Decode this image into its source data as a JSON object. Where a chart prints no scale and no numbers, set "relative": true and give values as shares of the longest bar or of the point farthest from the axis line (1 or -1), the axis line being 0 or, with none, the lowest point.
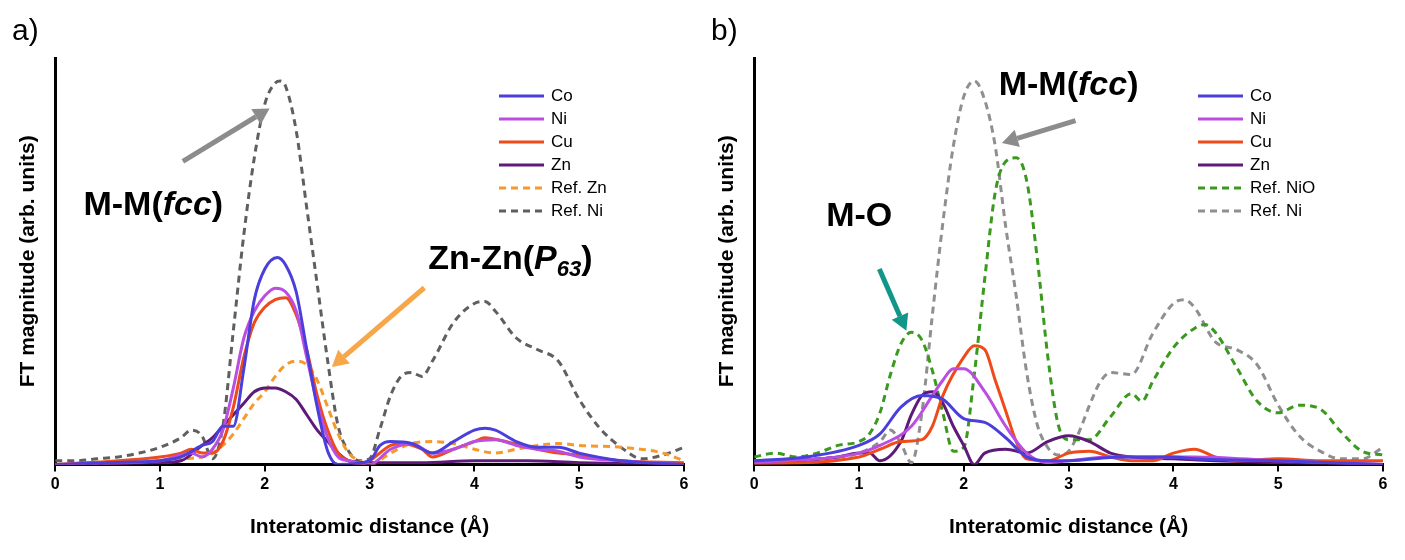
{
  "chart_data": [
    {
      "type": "line",
      "title": "a)",
      "xlabel": "Interatomic distance (Å)",
      "ylabel": "FT magnitude (arb. units)",
      "relative": true,
      "xlim": [
        0,
        6
      ],
      "xticks": [
        0,
        1,
        2,
        3,
        4,
        5,
        6
      ],
      "grid": false,
      "legend": "top right",
      "marker": "none",
      "annotations": [
        "M-M(fcc)",
        "Zn-Zn(P$_{63}$)"
      ],
      "series": [
        {
          "name": "Co",
          "color": "#4b3fdc",
          "line_style": "solid",
          "x": [
            0,
            0.5,
            1.0,
            1.2,
            1.4,
            1.5,
            1.6,
            1.7,
            1.8,
            1.9,
            2.0,
            2.12,
            2.2,
            2.3,
            2.4,
            2.5,
            2.6,
            2.7,
            3.0,
            3.1,
            3.2,
            3.4,
            3.6,
            3.8,
            4.0,
            4.1,
            4.2,
            4.4,
            4.6,
            4.8,
            5.0,
            5.4,
            6.0
          ],
          "values": [
            0,
            0.005,
            0.01,
            0.02,
            0.05,
            0.06,
            0.1,
            0.1,
            0.25,
            0.43,
            0.51,
            0.54,
            0.52,
            0.45,
            0.3,
            0.15,
            0.035,
            0,
            0.01,
            0.05,
            0.06,
            0.055,
            0.03,
            0.06,
            0.09,
            0.095,
            0.09,
            0.06,
            0.045,
            0.045,
            0.03,
            0.01,
            0
          ]
        },
        {
          "name": "Ni",
          "color": "#b94ee0",
          "line_style": "solid",
          "x": [
            0,
            1.0,
            1.3,
            1.4,
            1.5,
            1.6,
            1.7,
            1.8,
            1.9,
            2.0,
            2.1,
            2.2,
            2.3,
            2.4,
            2.5,
            2.6,
            2.7,
            2.8,
            3.0,
            3.2,
            3.4,
            3.6,
            3.8,
            4.0,
            4.2,
            4.4,
            4.6,
            4.8,
            5.0,
            5.4,
            6.0
          ],
          "values": [
            0,
            0.01,
            0.03,
            0.02,
            0.04,
            0.09,
            0.2,
            0.33,
            0.4,
            0.44,
            0.46,
            0.45,
            0.4,
            0.28,
            0.16,
            0.07,
            0.02,
            0.01,
            0,
            0.04,
            0.055,
            0.03,
            0.04,
            0.06,
            0.065,
            0.05,
            0.04,
            0.035,
            0.02,
            0.01,
            0
          ]
        },
        {
          "name": "Cu",
          "color": "#ee4a1a",
          "line_style": "solid",
          "x": [
            0,
            1.0,
            1.2,
            1.3,
            1.4,
            1.5,
            1.6,
            1.7,
            1.8,
            1.9,
            2.0,
            2.1,
            2.2,
            2.3,
            2.4,
            2.5,
            2.6,
            2.7,
            2.8,
            2.9,
            3.0,
            3.2,
            3.3,
            3.5,
            3.6,
            3.8,
            4.0,
            4.1,
            4.3,
            4.6,
            4.8,
            5.0,
            5.4,
            6.0
          ],
          "values": [
            0,
            0.02,
            0.03,
            0.04,
            0.03,
            0.03,
            0.06,
            0.15,
            0.28,
            0.37,
            0.41,
            0.43,
            0.435,
            0.39,
            0.3,
            0.18,
            0.09,
            0.03,
            0.01,
            0,
            0.01,
            0.05,
            0.055,
            0.04,
            0.02,
            0.04,
            0.06,
            0.07,
            0.06,
            0.04,
            0.03,
            0.025,
            0.01,
            0.005
          ]
        },
        {
          "name": "Zn",
          "color": "#5e1a78",
          "line_style": "solid",
          "x": [
            0,
            1.0,
            1.2,
            1.4,
            1.5,
            1.6,
            1.7,
            1.8,
            1.9,
            2.0,
            2.1,
            2.2,
            2.3,
            2.4,
            2.5,
            2.6,
            2.7,
            2.8,
            3.0,
            3.5,
            4.0,
            4.5,
            5.0,
            6.0
          ],
          "values": [
            0,
            0.005,
            0.01,
            0.05,
            0.07,
            0.1,
            0.13,
            0.16,
            0.19,
            0.2,
            0.2,
            0.19,
            0.17,
            0.13,
            0.09,
            0.06,
            0.03,
            0.01,
            0.005,
            0.005,
            0.01,
            0.01,
            0.005,
            0
          ]
        },
        {
          "name": "Ref. Zn",
          "color": "#f59a2a",
          "line_style": "dashed",
          "x": [
            0,
            1.0,
            1.2,
            1.4,
            1.5,
            1.6,
            1.7,
            1.8,
            1.9,
            2.0,
            2.1,
            2.2,
            2.3,
            2.4,
            2.5,
            2.6,
            2.7,
            2.8,
            2.9,
            3.0,
            3.2,
            3.4,
            3.6,
            3.8,
            4.0,
            4.2,
            4.4,
            4.6,
            4.8,
            5.0,
            5.4,
            5.8,
            6.0
          ],
          "values": [
            0,
            0.01,
            0.015,
            0.02,
            0.03,
            0.05,
            0.08,
            0.12,
            0.16,
            0.19,
            0.23,
            0.26,
            0.27,
            0.26,
            0.22,
            0.15,
            0.08,
            0.03,
            0.01,
            0,
            0.03,
            0.055,
            0.06,
            0.055,
            0.04,
            0.03,
            0.04,
            0.05,
            0.055,
            0.05,
            0.045,
            0.03,
            0.01
          ]
        },
        {
          "name": "Ref. Ni",
          "color": "#5f5f5f",
          "line_style": "dashed",
          "x": [
            0,
            0.2,
            0.4,
            0.6,
            0.8,
            1.0,
            1.2,
            1.3,
            1.4,
            1.5,
            1.6,
            1.7,
            1.8,
            1.9,
            2.0,
            2.1,
            2.15,
            2.2,
            2.3,
            2.4,
            2.5,
            2.6,
            2.7,
            2.8,
            2.9,
            3.0,
            3.1,
            3.2,
            3.3,
            3.4,
            3.5,
            3.6,
            3.8,
            4.0,
            4.1,
            4.2,
            4.4,
            4.6,
            4.8,
            5.0,
            5.2,
            5.4,
            5.6,
            5.8,
            6.0
          ],
          "values": [
            0.01,
            0.01,
            0.015,
            0.02,
            0.03,
            0.045,
            0.07,
            0.09,
            0.075,
            0.015,
            0.1,
            0.35,
            0.6,
            0.8,
            0.94,
            0.995,
            1,
            0.985,
            0.87,
            0.67,
            0.47,
            0.27,
            0.1,
            0.035,
            0.01,
            0.015,
            0.094,
            0.18,
            0.23,
            0.24,
            0.23,
            0.27,
            0.37,
            0.42,
            0.425,
            0.4,
            0.33,
            0.3,
            0.27,
            0.17,
            0.094,
            0.045,
            0.015,
            0.025,
            0.045
          ]
        }
      ]
    },
    {
      "type": "line",
      "title": "b)",
      "xlabel": "Interatomic distance (Å)",
      "ylabel": "FT magnitude (arb. units)",
      "relative": true,
      "xlim": [
        0,
        6
      ],
      "xticks": [
        0,
        1,
        2,
        3,
        4,
        5,
        6
      ],
      "grid": false,
      "legend": "top right",
      "marker": "none",
      "annotations": [
        "M-O",
        "M-M(fcc)"
      ],
      "series": [
        {
          "name": "Co",
          "color": "#4b3fdc",
          "line_style": "solid",
          "x": [
            0,
            0.5,
            1.0,
            1.2,
            1.4,
            1.6,
            1.8,
            2.0,
            2.2,
            2.4,
            2.6,
            2.8,
            3.0,
            3.5,
            4.0,
            4.2,
            5.0,
            6.0
          ],
          "values": [
            0.01,
            0.02,
            0.05,
            0.08,
            0.15,
            0.18,
            0.17,
            0.12,
            0.11,
            0.07,
            0.02,
            0.01,
            0.01,
            0.02,
            0.02,
            0.015,
            0.01,
            0
          ]
        },
        {
          "name": "Ni",
          "color": "#b94ee0",
          "line_style": "solid",
          "x": [
            0,
            1.0,
            1.2,
            1.5,
            1.7,
            1.8,
            1.9,
            2.0,
            2.2,
            2.4,
            2.6,
            2.8,
            3.0,
            3.4,
            3.8,
            4.2,
            5.0,
            6.0
          ],
          "values": [
            0.005,
            0.03,
            0.05,
            0.1,
            0.18,
            0.22,
            0.25,
            0.25,
            0.19,
            0.1,
            0.03,
            0.005,
            0.01,
            0.02,
            0.02,
            0.02,
            0.01,
            0
          ]
        },
        {
          "name": "Cu",
          "color": "#ee4a1a",
          "line_style": "solid",
          "x": [
            0,
            1.0,
            1.2,
            1.4,
            1.6,
            1.7,
            1.8,
            2.0,
            2.1,
            2.2,
            2.3,
            2.4,
            2.5,
            2.6,
            2.8,
            3.0,
            3.2,
            3.4,
            3.6,
            3.8,
            4.0,
            4.2,
            4.4,
            4.6,
            5.0,
            5.4,
            6.0
          ],
          "values": [
            0,
            0.02,
            0.04,
            0.06,
            0.065,
            0.1,
            0.18,
            0.28,
            0.31,
            0.3,
            0.22,
            0.14,
            0.06,
            0.015,
            0.01,
            0.03,
            0.035,
            0.02,
            0.01,
            0.01,
            0.03,
            0.04,
            0.02,
            0.01,
            0.015,
            0.01,
            0.01
          ]
        },
        {
          "name": "Zn",
          "color": "#5e1a78",
          "line_style": "solid",
          "x": [
            0,
            0.8,
            1.0,
            1.1,
            1.2,
            1.4,
            1.5,
            1.6,
            1.7,
            1.8,
            1.9,
            2.0,
            2.1,
            2.2,
            2.4,
            2.6,
            2.8,
            3.0,
            3.2,
            3.4,
            3.6,
            4.0,
            4.4,
            5.0,
            6.0
          ],
          "values": [
            0,
            0.02,
            0.03,
            0.03,
            0.01,
            0.06,
            0.13,
            0.18,
            0.19,
            0.16,
            0.1,
            0.05,
            0,
            0.03,
            0.04,
            0.03,
            0.06,
            0.075,
            0.06,
            0.03,
            0.02,
            0.015,
            0.01,
            0.005,
            0
          ]
        },
        {
          "name": "Ref. NiO",
          "color": "#3a9a1e",
          "line_style": "dashed",
          "x": [
            0,
            0.2,
            0.4,
            0.6,
            0.8,
            1.0,
            1.1,
            1.2,
            1.3,
            1.4,
            1.5,
            1.6,
            1.7,
            1.8,
            1.9,
            2.0,
            2.1,
            2.2,
            2.3,
            2.4,
            2.5,
            2.6,
            2.7,
            2.8,
            2.9,
            3.0,
            3.2,
            3.4,
            3.6,
            3.7,
            3.8,
            4.0,
            4.2,
            4.3,
            4.4,
            4.6,
            4.8,
            5.0,
            5.2,
            5.4,
            5.6,
            5.8,
            6.0
          ],
          "values": [
            0.02,
            0.03,
            0.02,
            0.03,
            0.05,
            0.06,
            0.08,
            0.135,
            0.235,
            0.315,
            0.345,
            0.325,
            0.245,
            0.135,
            0.035,
            0.045,
            0.235,
            0.485,
            0.71,
            0.79,
            0.8,
            0.74,
            0.54,
            0.285,
            0.105,
            0.065,
            0.065,
            0.125,
            0.185,
            0.165,
            0.215,
            0.305,
            0.355,
            0.365,
            0.345,
            0.255,
            0.165,
            0.135,
            0.155,
            0.145,
            0.085,
            0.035,
            0.025
          ]
        },
        {
          "name": "Ref. Ni",
          "color": "#8f8f8f",
          "line_style": "dashed",
          "x": [
            0,
            0.5,
            1.0,
            1.2,
            1.3,
            1.4,
            1.5,
            1.6,
            1.7,
            1.8,
            1.9,
            2.0,
            2.1,
            2.2,
            2.3,
            2.4,
            2.5,
            2.6,
            2.7,
            2.8,
            2.9,
            3.0,
            3.1,
            3.2,
            3.3,
            3.4,
            3.6,
            3.8,
            4.0,
            4.1,
            4.2,
            4.4,
            4.6,
            4.8,
            5.0,
            5.2,
            5.4,
            5.6,
            5.8,
            6.0
          ],
          "values": [
            0.01,
            0.015,
            0.03,
            0.06,
            0.09,
            0.055,
            0.005,
            0.135,
            0.39,
            0.63,
            0.83,
            0.96,
            1,
            0.95,
            0.83,
            0.62,
            0.44,
            0.24,
            0.105,
            0.045,
            0.025,
            0.035,
            0.085,
            0.155,
            0.215,
            0.24,
            0.235,
            0.34,
            0.42,
            0.43,
            0.41,
            0.32,
            0.3,
            0.26,
            0.155,
            0.075,
            0.035,
            0.015,
            0.015,
            0.045
          ]
        }
      ]
    }
  ]
}
